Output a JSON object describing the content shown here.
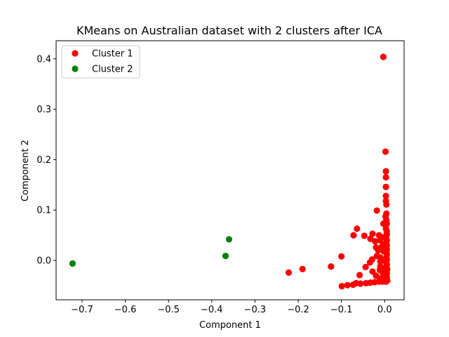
{
  "chart_data": {
    "type": "scatter",
    "title": "KMeans on Australian dataset with 2 clusters after ICA",
    "xlabel": "Component 1",
    "ylabel": "Component 2",
    "xlim": [
      -0.76,
      0.045
    ],
    "ylim": [
      -0.078,
      0.436
    ],
    "xticks": [
      -0.7,
      -0.6,
      -0.5,
      -0.4,
      -0.3,
      -0.2,
      -0.1,
      0.0
    ],
    "xtick_labels": [
      "−0.7",
      "−0.6",
      "−0.5",
      "−0.4",
      "−0.3",
      "−0.2",
      "−0.1",
      "0.0"
    ],
    "yticks": [
      0.0,
      0.1,
      0.2,
      0.3,
      0.4
    ],
    "ytick_labels": [
      "0.0",
      "0.1",
      "0.2",
      "0.3",
      "0.4"
    ],
    "grid": false,
    "legend_position": "top-left",
    "series": [
      {
        "name": "Cluster 1",
        "color": "#ff0000",
        "points": [
          [
            -0.003,
            0.404
          ],
          [
            0.002,
            0.216
          ],
          [
            0.003,
            0.177
          ],
          [
            0.003,
            0.165
          ],
          [
            0.003,
            0.146
          ],
          [
            0.003,
            0.128
          ],
          [
            0.003,
            0.118
          ],
          [
            0.004,
            0.111
          ],
          [
            0.004,
            0.093
          ],
          [
            0.002,
            0.087
          ],
          [
            0.004,
            0.08
          ],
          [
            0.005,
            0.073
          ],
          [
            -0.003,
            0.073
          ],
          [
            0.003,
            0.063
          ],
          [
            -0.018,
            0.099
          ],
          [
            -0.064,
            0.063
          ],
          [
            -0.072,
            0.05
          ],
          [
            -0.047,
            0.049
          ],
          [
            -0.028,
            0.053
          ],
          [
            -0.013,
            0.05
          ],
          [
            -0.033,
            0.043
          ],
          [
            -0.022,
            0.038
          ],
          [
            -0.011,
            0.04
          ],
          [
            0.003,
            0.045
          ],
          [
            0.004,
            0.036
          ],
          [
            -0.006,
            0.028
          ],
          [
            0.003,
            0.026
          ],
          [
            -0.02,
            0.026
          ],
          [
            0.004,
            0.016
          ],
          [
            -0.018,
            0.009
          ],
          [
            -0.01,
            0.006
          ],
          [
            0.004,
            0.005
          ],
          [
            -0.1,
            0.008
          ],
          [
            -0.029,
            0.002
          ],
          [
            -0.01,
            -0.002
          ],
          [
            0.004,
            -0.004
          ],
          [
            -0.034,
            -0.004
          ],
          [
            -0.044,
            -0.013
          ],
          [
            -0.01,
            -0.012
          ],
          [
            0.004,
            -0.012
          ],
          [
            -0.124,
            -0.012
          ],
          [
            -0.19,
            -0.017
          ],
          [
            -0.222,
            -0.024
          ],
          [
            -0.028,
            -0.022
          ],
          [
            -0.011,
            -0.019
          ],
          [
            0.003,
            -0.022
          ],
          [
            -0.058,
            -0.029
          ],
          [
            -0.02,
            -0.03
          ],
          [
            0.004,
            -0.03
          ],
          [
            -0.011,
            -0.036
          ],
          [
            0.003,
            -0.038
          ],
          [
            -0.066,
            -0.045
          ],
          [
            -0.073,
            -0.048
          ],
          [
            -0.086,
            -0.049
          ],
          [
            -0.099,
            -0.051
          ],
          [
            -0.056,
            -0.046
          ],
          [
            -0.043,
            -0.045
          ],
          [
            -0.033,
            -0.044
          ],
          [
            -0.023,
            -0.043
          ],
          [
            -0.013,
            -0.042
          ],
          [
            -0.005,
            -0.042
          ],
          [
            0.003,
            -0.042
          ],
          [
            0.006,
            -0.04
          ],
          [
            0.005,
            -0.034
          ],
          [
            0.005,
            -0.026
          ],
          [
            0.006,
            -0.018
          ],
          [
            0.005,
            -0.008
          ],
          [
            0.005,
            0.002
          ],
          [
            0.005,
            0.012
          ],
          [
            0.005,
            0.022
          ],
          [
            0.005,
            0.03
          ],
          [
            0.005,
            0.04
          ],
          [
            0.005,
            0.052
          ],
          [
            0.005,
            0.058
          ],
          [
            -0.002,
            0.032
          ],
          [
            -0.002,
            0.018
          ],
          [
            -0.002,
            0.0
          ],
          [
            -0.002,
            -0.016
          ],
          [
            -0.002,
            -0.03
          ],
          [
            -0.006,
            0.046
          ],
          [
            -0.015,
            0.02
          ],
          [
            -0.004,
            -0.025
          ]
        ]
      },
      {
        "name": "Cluster 2",
        "color": "#008000",
        "points": [
          [
            -0.722,
            -0.006
          ],
          [
            -0.36,
            0.042
          ],
          [
            -0.368,
            0.009
          ]
        ]
      }
    ]
  }
}
